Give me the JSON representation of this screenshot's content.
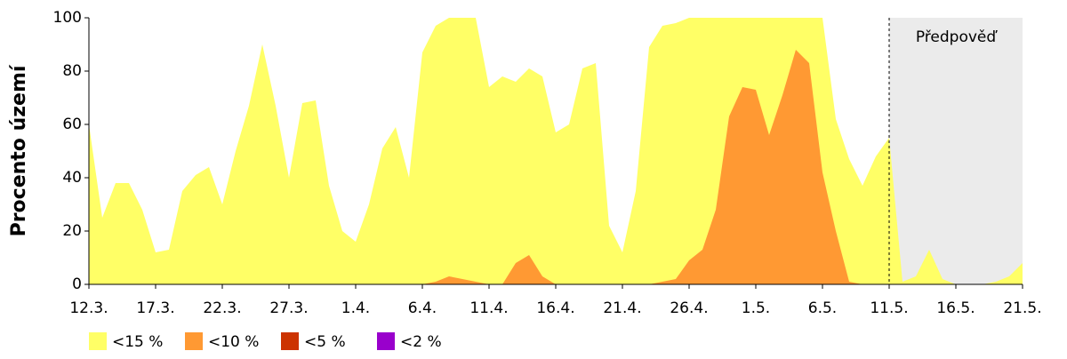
{
  "chart_data": {
    "type": "area",
    "ylabel": "Procento území",
    "categories": [
      "12.3.",
      null,
      null,
      null,
      null,
      "17.3.",
      null,
      null,
      null,
      null,
      "22.3.",
      null,
      null,
      null,
      null,
      "27.3.",
      null,
      null,
      null,
      null,
      "1.4.",
      null,
      null,
      null,
      null,
      "6.4.",
      null,
      null,
      null,
      null,
      "11.4.",
      null,
      null,
      null,
      null,
      "16.4.",
      null,
      null,
      null,
      null,
      "21.4.",
      null,
      null,
      null,
      null,
      "26.4.",
      null,
      null,
      null,
      null,
      "1.5.",
      null,
      null,
      null,
      null,
      "6.5.",
      null,
      null,
      null,
      null,
      "11.5.",
      null,
      null,
      null,
      null,
      "16.5.",
      null,
      null,
      null,
      null,
      "21.5."
    ],
    "series": [
      {
        "name": "<15 %",
        "color": "#ffff66",
        "values": [
          60,
          25,
          38,
          38,
          28,
          12,
          13,
          35,
          41,
          44,
          30,
          50,
          67,
          90,
          67,
          40,
          68,
          69,
          37,
          20,
          16,
          30,
          51,
          59,
          40,
          87,
          97,
          100,
          100,
          100,
          74,
          78,
          76,
          81,
          78,
          57,
          60,
          81,
          83,
          22,
          12,
          35,
          89,
          97,
          98,
          100,
          100,
          100,
          100,
          100,
          100,
          100,
          100,
          100,
          100,
          100,
          62,
          47,
          37,
          48,
          55,
          1,
          3,
          13,
          2,
          0,
          0,
          0,
          1,
          3,
          8
        ]
      },
      {
        "name": "<10 %",
        "color": "#ff9933",
        "values": [
          0,
          0,
          0,
          0,
          0,
          0,
          0,
          0,
          0,
          0,
          0,
          0,
          0,
          0,
          0,
          0,
          0,
          0,
          0,
          0,
          0,
          0,
          0,
          0,
          0,
          0,
          1,
          3,
          2,
          1,
          0,
          0,
          8,
          11,
          3,
          0,
          0,
          0,
          0,
          0,
          0,
          0,
          0,
          1,
          2,
          9,
          13,
          28,
          63,
          74,
          73,
          56,
          71,
          88,
          83,
          42,
          20,
          1,
          0,
          0,
          0,
          0,
          0,
          0,
          0,
          0,
          0,
          0,
          0,
          0,
          0
        ]
      },
      {
        "name": "<5 %",
        "color": "#cc3300",
        "values": [
          0,
          0,
          0,
          0,
          0,
          0,
          0,
          0,
          0,
          0,
          0,
          0,
          0,
          0,
          0,
          0,
          0,
          0,
          0,
          0,
          0,
          0,
          0,
          0,
          0,
          0,
          0,
          0,
          0,
          0,
          0,
          0,
          0,
          0,
          0,
          0,
          0,
          0,
          0,
          0,
          0,
          0,
          0,
          0,
          0,
          0,
          0,
          0,
          0,
          0,
          0,
          0,
          0,
          0,
          0,
          0,
          0,
          0,
          0,
          0,
          0,
          0,
          0,
          0,
          0,
          0,
          0,
          0,
          0,
          0,
          0
        ]
      },
      {
        "name": "<2 %",
        "color": "#9900cc",
        "values": [
          0,
          0,
          0,
          0,
          0,
          0,
          0,
          0,
          0,
          0,
          0,
          0,
          0,
          0,
          0,
          0,
          0,
          0,
          0,
          0,
          0,
          0,
          0,
          0,
          0,
          0,
          0,
          0,
          0,
          0,
          0,
          0,
          0,
          0,
          0,
          0,
          0,
          0,
          0,
          0,
          0,
          0,
          0,
          0,
          0,
          0,
          0,
          0,
          0,
          0,
          0,
          0,
          0,
          0,
          0,
          0,
          0,
          0,
          0,
          0,
          0,
          0,
          0,
          0,
          0,
          0,
          0,
          0,
          0,
          0,
          0
        ]
      }
    ],
    "forecast": {
      "label": "Předpověď",
      "start": "11.5.",
      "color": "#ebebeb"
    },
    "ylim": [
      0,
      100
    ],
    "yticks": [
      0,
      20,
      40,
      60,
      80,
      100
    ],
    "grid": false
  }
}
